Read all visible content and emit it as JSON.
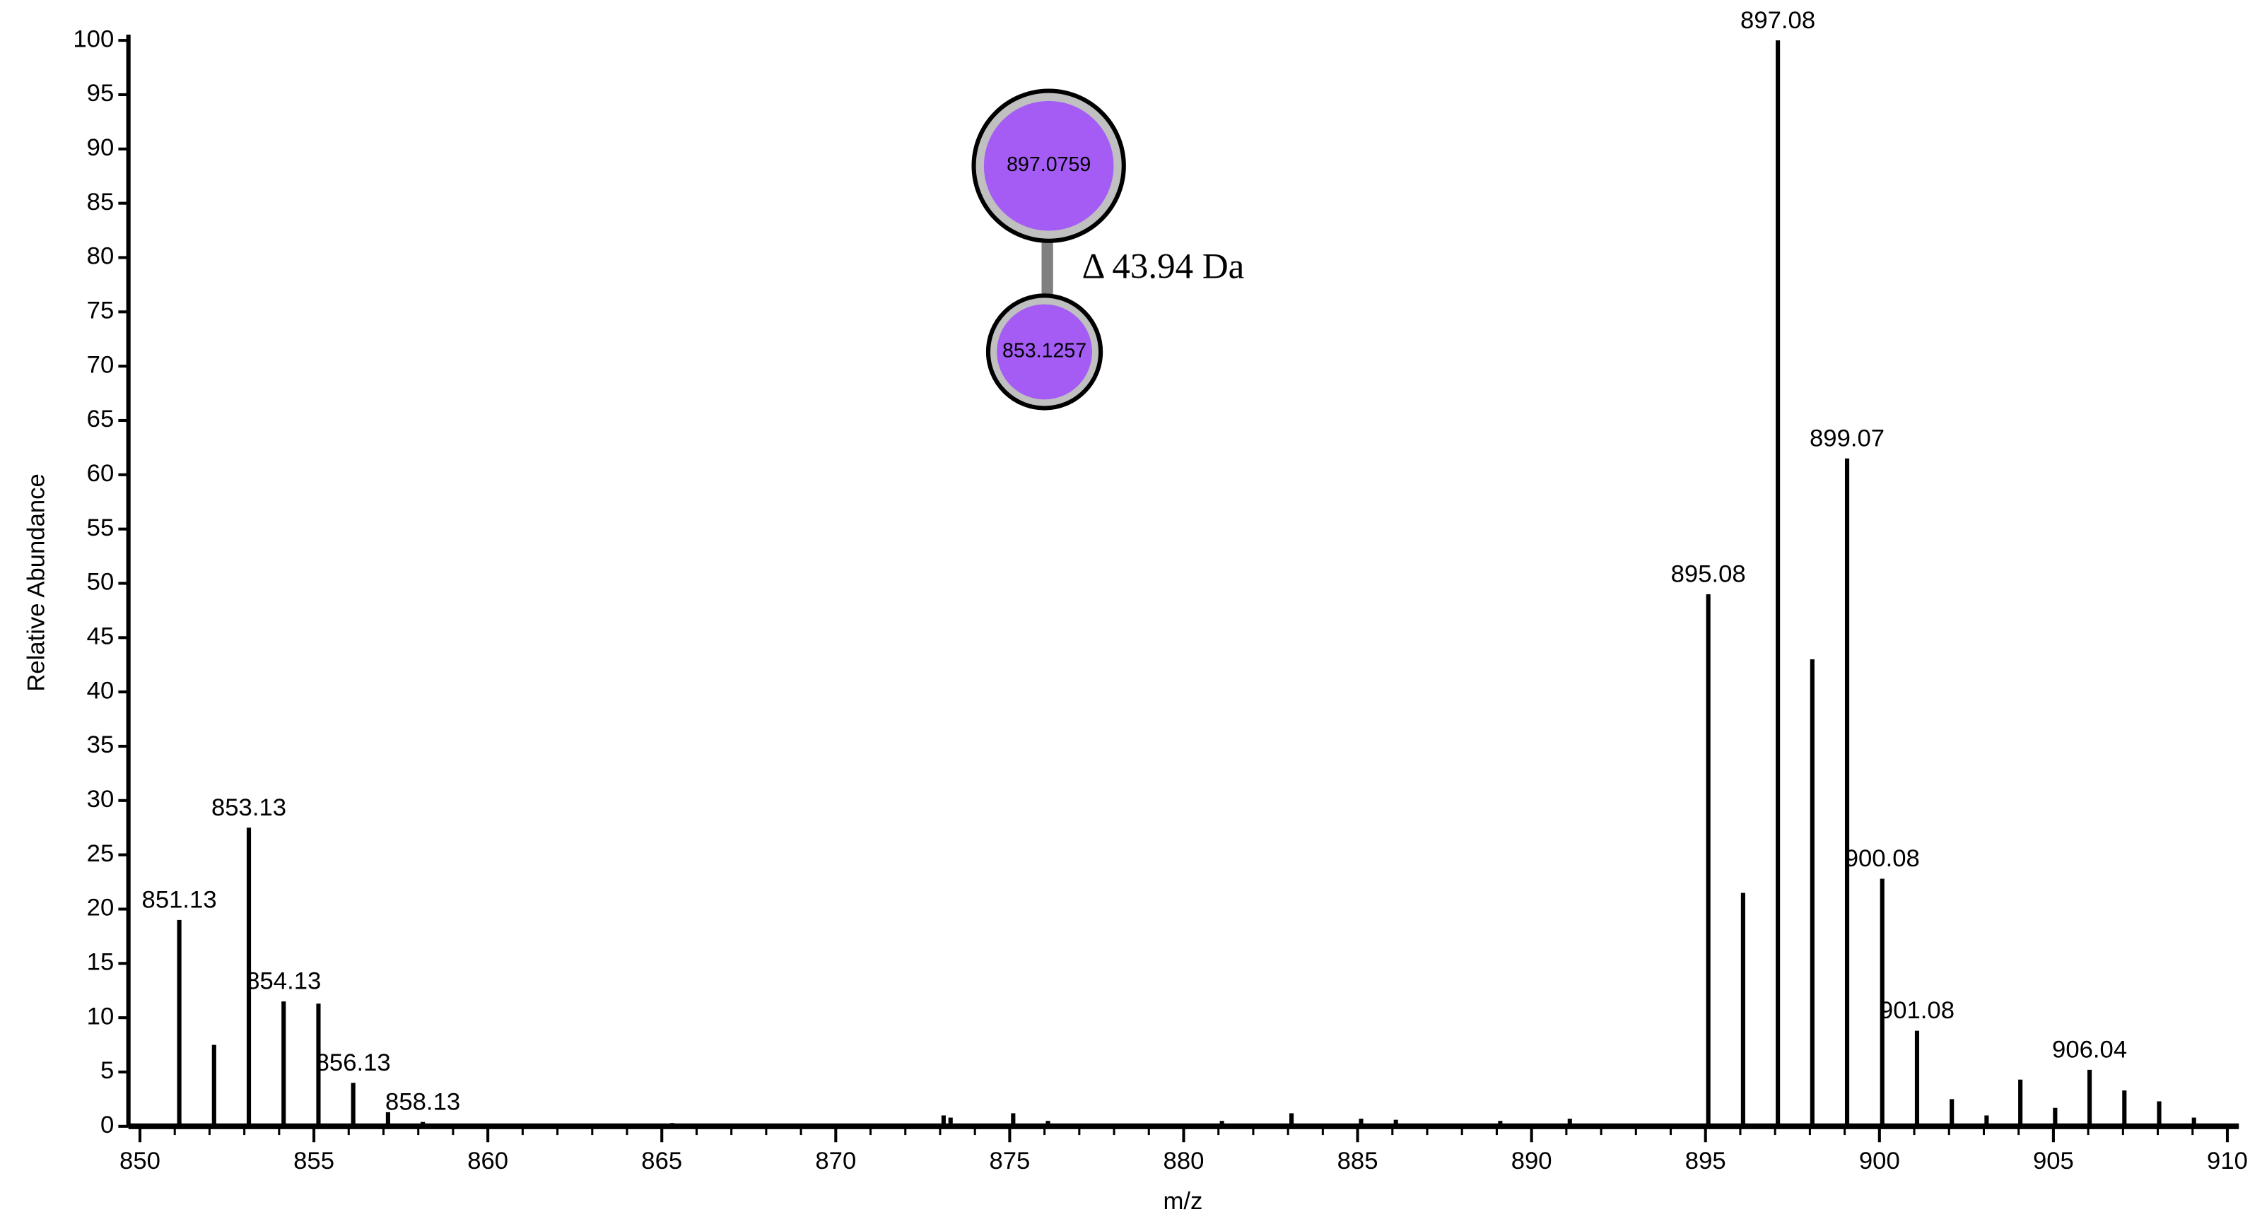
{
  "chart_data": {
    "type": "stick",
    "x_label": "m/z",
    "y_label": "Relative Abundance",
    "x": [
      851.13,
      852.13,
      853.13,
      854.13,
      855.13,
      856.13,
      857.13,
      858.13,
      865.3,
      873.1,
      873.3,
      875.1,
      876.1,
      881.1,
      883.1,
      885.1,
      886.1,
      889.1,
      891.1,
      895.08,
      896.08,
      897.08,
      898.07,
      899.07,
      900.08,
      901.08,
      902.08,
      903.08,
      904.05,
      905.05,
      906.04,
      907.04,
      908.04,
      909.04
    ],
    "values": [
      19,
      7.5,
      27.5,
      11.5,
      11.3,
      4,
      1.3,
      0.4,
      0.3,
      1,
      0.8,
      1.2,
      0.5,
      0.5,
      1.2,
      0.7,
      0.6,
      0.5,
      0.7,
      49,
      21.5,
      100,
      43,
      61.5,
      22.8,
      8.8,
      2.5,
      1,
      4.3,
      1.7,
      5.2,
      3.3,
      2.3,
      0.8
    ],
    "peak_labels": [
      "851.13",
      null,
      "853.13",
      "854.13",
      null,
      "856.13",
      null,
      "858.13",
      null,
      null,
      null,
      null,
      null,
      null,
      null,
      null,
      null,
      null,
      null,
      "895.08",
      null,
      "897.08",
      null,
      "899.07",
      "900.08",
      "901.08",
      null,
      null,
      null,
      null,
      "906.04",
      null,
      null,
      null
    ],
    "color": "#000000",
    "xlim": [
      849,
      910.5
    ],
    "ylim": [
      0,
      100
    ],
    "xticks": [
      850,
      855,
      860,
      865,
      870,
      875,
      880,
      885,
      890,
      895,
      900,
      905,
      910
    ],
    "yticks": [
      0,
      5,
      10,
      15,
      20,
      25,
      30,
      35,
      40,
      45,
      50,
      55,
      60,
      65,
      70,
      75,
      80,
      85,
      90,
      95,
      100
    ],
    "network": {
      "nodes": [
        "897.0759",
        "853.1257"
      ],
      "edge_label": "Δ 43.94 Da"
    }
  }
}
